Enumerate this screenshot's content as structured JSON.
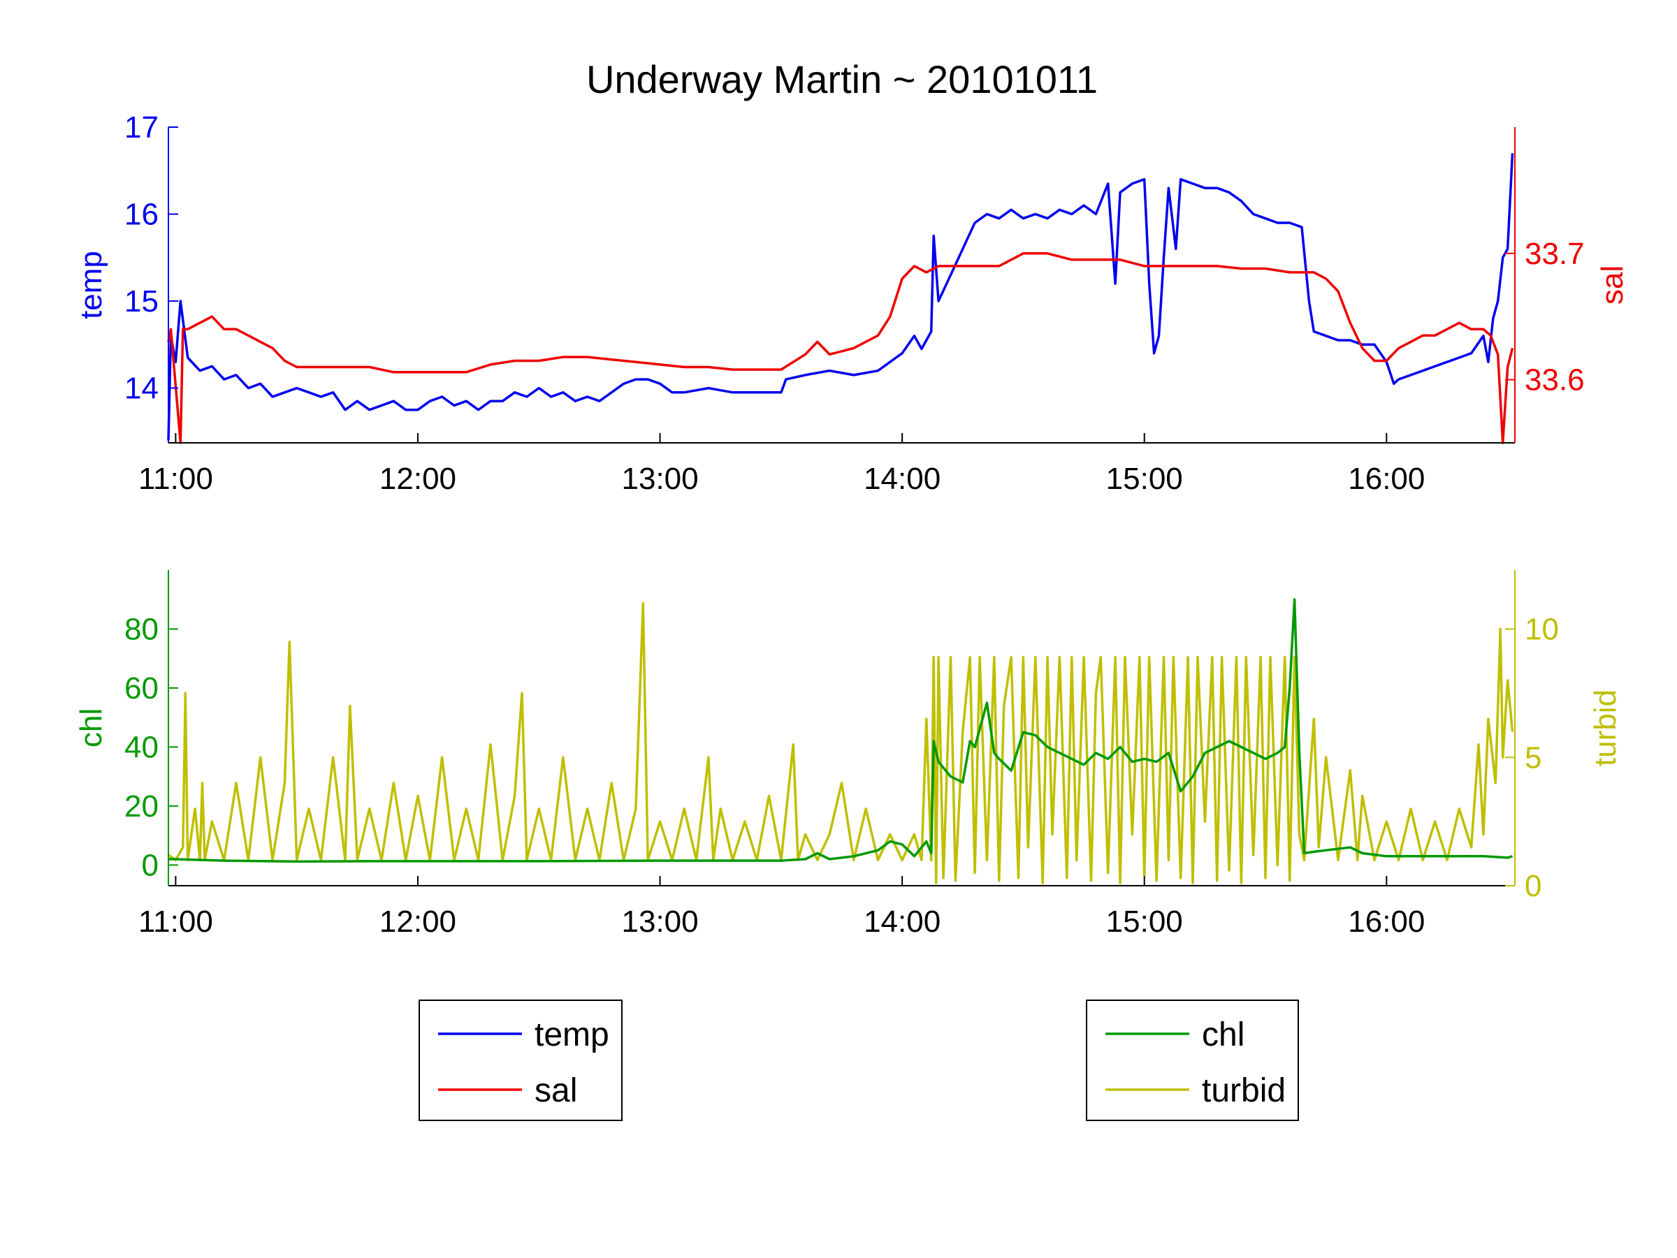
{
  "title": "Underway Martin ~ 20101011",
  "colors": {
    "temp": "#0000ee",
    "sal": "#ee0000",
    "chl": "#009900",
    "turbid": "#bfbf00",
    "axes": "#000000"
  },
  "legends": {
    "top": [
      {
        "label": "temp",
        "color": "#0000ee"
      },
      {
        "label": "sal",
        "color": "#ee0000"
      }
    ],
    "bottom": [
      {
        "label": "chl",
        "color": "#009900"
      },
      {
        "label": "turbid",
        "color": "#bfbf00"
      }
    ]
  },
  "chart_data": [
    {
      "type": "line",
      "title": "Underway Martin ~ 20101011",
      "x_ticks": [
        "11:00",
        "12:00",
        "13:00",
        "14:00",
        "15:00",
        "16:00"
      ],
      "x_range_hours": [
        10.97,
        16.53
      ],
      "y_left": {
        "label": "temp",
        "range": [
          13.37,
          17.0
        ],
        "ticks": [
          "14",
          "15",
          "16",
          "17"
        ]
      },
      "y_right": {
        "label": "sal",
        "range": [
          33.55,
          33.8
        ],
        "ticks": [
          "33.6",
          "33.7"
        ]
      },
      "legend_position": "below",
      "grid": false,
      "series": [
        {
          "name": "temp",
          "axis": "left",
          "x": [
            10.97,
            10.98,
            11.0,
            11.02,
            11.05,
            11.1,
            11.15,
            11.2,
            11.25,
            11.3,
            11.35,
            11.4,
            11.45,
            11.5,
            11.55,
            11.6,
            11.65,
            11.7,
            11.75,
            11.8,
            11.85,
            11.9,
            11.95,
            12.0,
            12.05,
            12.1,
            12.15,
            12.2,
            12.25,
            12.3,
            12.35,
            12.4,
            12.45,
            12.5,
            12.55,
            12.6,
            12.65,
            12.7,
            12.75,
            12.8,
            12.85,
            12.9,
            12.95,
            13.0,
            13.05,
            13.1,
            13.2,
            13.3,
            13.4,
            13.5,
            13.52,
            13.6,
            13.7,
            13.8,
            13.9,
            14.0,
            14.05,
            14.08,
            14.12,
            14.13,
            14.15,
            14.2,
            14.25,
            14.3,
            14.35,
            14.4,
            14.45,
            14.5,
            14.55,
            14.6,
            14.65,
            14.7,
            14.75,
            14.8,
            14.85,
            14.88,
            14.9,
            14.95,
            15.0,
            15.02,
            15.04,
            15.06,
            15.08,
            15.1,
            15.13,
            15.15,
            15.2,
            15.25,
            15.3,
            15.35,
            15.4,
            15.45,
            15.5,
            15.55,
            15.6,
            15.65,
            15.68,
            15.7,
            15.75,
            15.8,
            15.85,
            15.9,
            15.95,
            16.0,
            16.03,
            16.05,
            16.1,
            16.15,
            16.2,
            16.25,
            16.3,
            16.35,
            16.4,
            16.42,
            16.44,
            16.46,
            16.48,
            16.5,
            16.52
          ],
          "values": [
            13.4,
            14.6,
            14.3,
            15.0,
            14.35,
            14.2,
            14.25,
            14.1,
            14.15,
            14.0,
            14.05,
            13.9,
            13.95,
            14.0,
            13.95,
            13.9,
            13.95,
            13.75,
            13.85,
            13.75,
            13.8,
            13.85,
            13.75,
            13.75,
            13.85,
            13.9,
            13.8,
            13.85,
            13.75,
            13.85,
            13.85,
            13.95,
            13.9,
            14.0,
            13.9,
            13.95,
            13.85,
            13.9,
            13.85,
            13.95,
            14.05,
            14.1,
            14.1,
            14.05,
            13.95,
            13.95,
            14.0,
            13.95,
            13.95,
            13.95,
            14.1,
            14.15,
            14.2,
            14.15,
            14.2,
            14.4,
            14.6,
            14.45,
            14.65,
            15.75,
            15.0,
            15.3,
            15.6,
            15.9,
            16.0,
            15.95,
            16.05,
            15.95,
            16.0,
            15.95,
            16.05,
            16.0,
            16.1,
            16.0,
            16.35,
            15.2,
            16.25,
            16.35,
            16.4,
            15.2,
            14.4,
            14.6,
            15.5,
            16.3,
            15.6,
            16.4,
            16.35,
            16.3,
            16.3,
            16.25,
            16.15,
            16.0,
            15.95,
            15.9,
            15.9,
            15.85,
            15.0,
            14.65,
            14.6,
            14.55,
            14.55,
            14.5,
            14.5,
            14.3,
            14.05,
            14.1,
            14.15,
            14.2,
            14.25,
            14.3,
            14.35,
            14.4,
            14.6,
            14.3,
            14.8,
            15.0,
            15.5,
            15.6,
            16.7
          ]
        },
        {
          "name": "sal",
          "axis": "right",
          "x": [
            10.97,
            10.98,
            11.02,
            11.03,
            11.05,
            11.1,
            11.15,
            11.2,
            11.25,
            11.3,
            11.35,
            11.4,
            11.45,
            11.5,
            11.6,
            11.7,
            11.8,
            11.9,
            12.0,
            12.1,
            12.2,
            12.3,
            12.4,
            12.5,
            12.6,
            12.7,
            12.8,
            12.9,
            13.0,
            13.1,
            13.2,
            13.3,
            13.4,
            13.5,
            13.6,
            13.65,
            13.7,
            13.8,
            13.9,
            13.95,
            14.0,
            14.05,
            14.1,
            14.15,
            14.2,
            14.3,
            14.4,
            14.5,
            14.6,
            14.7,
            14.8,
            14.9,
            15.0,
            15.1,
            15.2,
            15.3,
            15.4,
            15.5,
            15.6,
            15.65,
            15.7,
            15.75,
            15.8,
            15.85,
            15.9,
            15.95,
            16.0,
            16.05,
            16.1,
            16.15,
            16.2,
            16.25,
            16.3,
            16.35,
            16.4,
            16.43,
            16.46,
            16.48,
            16.5,
            16.52
          ],
          "values": [
            33.63,
            33.64,
            33.55,
            33.64,
            33.64,
            33.645,
            33.65,
            33.64,
            33.64,
            33.635,
            33.63,
            33.625,
            33.615,
            33.61,
            33.61,
            33.61,
            33.61,
            33.606,
            33.606,
            33.606,
            33.606,
            33.612,
            33.615,
            33.615,
            33.618,
            33.618,
            33.616,
            33.614,
            33.612,
            33.61,
            33.61,
            33.608,
            33.608,
            33.608,
            33.62,
            33.63,
            33.62,
            33.625,
            33.635,
            33.65,
            33.68,
            33.69,
            33.685,
            33.69,
            33.69,
            33.69,
            33.69,
            33.7,
            33.7,
            33.695,
            33.695,
            33.695,
            33.69,
            33.69,
            33.69,
            33.69,
            33.688,
            33.688,
            33.685,
            33.685,
            33.685,
            33.68,
            33.67,
            33.645,
            33.625,
            33.615,
            33.615,
            33.625,
            33.63,
            33.635,
            33.635,
            33.64,
            33.645,
            33.64,
            33.64,
            33.635,
            33.62,
            33.55,
            33.61,
            33.625
          ]
        }
      ]
    },
    {
      "type": "line",
      "x_ticks": [
        "11:00",
        "12:00",
        "13:00",
        "14:00",
        "15:00",
        "16:00"
      ],
      "x_range_hours": [
        10.97,
        16.53
      ],
      "y_left": {
        "label": "chl",
        "range": [
          -7,
          100
        ],
        "ticks": [
          "0",
          "20",
          "40",
          "60",
          "80"
        ]
      },
      "y_right": {
        "label": "turbid",
        "range": [
          0,
          12.3
        ],
        "ticks": [
          "0",
          "5",
          "10"
        ]
      },
      "legend_position": "below",
      "grid": false,
      "series": [
        {
          "name": "chl",
          "axis": "left",
          "x": [
            10.97,
            11.0,
            11.2,
            11.5,
            11.8,
            12.0,
            12.5,
            13.0,
            13.5,
            13.6,
            13.65,
            13.7,
            13.8,
            13.9,
            13.95,
            14.0,
            14.05,
            14.1,
            14.12,
            14.13,
            14.15,
            14.2,
            14.25,
            14.28,
            14.3,
            14.35,
            14.38,
            14.4,
            14.45,
            14.5,
            14.55,
            14.6,
            14.65,
            14.7,
            14.75,
            14.8,
            14.85,
            14.9,
            14.95,
            15.0,
            15.05,
            15.1,
            15.15,
            15.2,
            15.25,
            15.3,
            15.35,
            15.4,
            15.45,
            15.5,
            15.55,
            15.58,
            15.6,
            15.62,
            15.64,
            15.66,
            15.7,
            15.75,
            15.8,
            15.85,
            15.9,
            16.0,
            16.1,
            16.2,
            16.3,
            16.4,
            16.5,
            16.52
          ],
          "values": [
            2,
            2,
            1.5,
            1.2,
            1.3,
            1.3,
            1.3,
            1.5,
            1.5,
            2,
            4,
            2,
            3,
            5,
            8,
            7,
            3,
            8,
            4,
            42,
            35,
            30,
            28,
            42,
            40,
            55,
            38,
            36,
            32,
            45,
            44,
            40,
            38,
            36,
            34,
            38,
            36,
            40,
            35,
            36,
            35,
            38,
            25,
            30,
            38,
            40,
            42,
            40,
            38,
            36,
            38,
            40,
            60,
            90,
            38,
            4,
            4.5,
            5,
            5.5,
            6,
            4,
            3,
            3,
            3,
            3,
            3,
            2.5,
            3
          ]
        },
        {
          "name": "turbid",
          "axis": "right",
          "x": [
            10.97,
            11.0,
            11.03,
            11.04,
            11.05,
            11.08,
            11.1,
            11.11,
            11.12,
            11.15,
            11.2,
            11.25,
            11.3,
            11.35,
            11.4,
            11.45,
            11.47,
            11.5,
            11.55,
            11.6,
            11.65,
            11.7,
            11.72,
            11.75,
            11.8,
            11.85,
            11.9,
            11.95,
            12.0,
            12.05,
            12.1,
            12.15,
            12.2,
            12.25,
            12.3,
            12.35,
            12.4,
            12.43,
            12.45,
            12.5,
            12.55,
            12.6,
            12.65,
            12.7,
            12.75,
            12.8,
            12.85,
            12.9,
            12.93,
            12.95,
            13.0,
            13.05,
            13.1,
            13.15,
            13.2,
            13.22,
            13.25,
            13.3,
            13.35,
            13.4,
            13.45,
            13.5,
            13.55,
            13.57,
            13.6,
            13.65,
            13.7,
            13.75,
            13.8,
            13.85,
            13.9,
            13.95,
            14.0,
            14.05,
            14.08,
            14.1,
            14.12,
            14.13,
            14.14,
            14.15,
            14.17,
            14.2,
            14.22,
            14.25,
            14.28,
            14.3,
            14.32,
            14.35,
            14.38,
            14.4,
            14.42,
            14.45,
            14.48,
            14.5,
            14.52,
            14.55,
            14.58,
            14.6,
            14.62,
            14.65,
            14.68,
            14.7,
            14.72,
            14.75,
            14.78,
            14.8,
            14.82,
            14.85,
            14.88,
            14.9,
            14.92,
            14.95,
            14.98,
            15.0,
            15.02,
            15.05,
            15.08,
            15.1,
            15.12,
            15.15,
            15.18,
            15.2,
            15.22,
            15.25,
            15.28,
            15.3,
            15.32,
            15.35,
            15.38,
            15.4,
            15.42,
            15.45,
            15.48,
            15.5,
            15.52,
            15.55,
            15.58,
            15.6,
            15.62,
            15.64,
            15.66,
            15.7,
            15.72,
            15.75,
            15.8,
            15.85,
            15.88,
            15.9,
            15.95,
            16.0,
            16.05,
            16.1,
            16.15,
            16.2,
            16.25,
            16.3,
            16.35,
            16.38,
            16.4,
            16.42,
            16.45,
            16.47,
            16.48,
            16.5,
            16.52
          ],
          "values": [
            1.2,
            1.0,
            1.5,
            7.5,
            1.0,
            3.0,
            1.0,
            4.0,
            1.0,
            2.5,
            1.0,
            4.0,
            1.0,
            5.0,
            1.0,
            4.0,
            9.5,
            1.0,
            3.0,
            1.0,
            5.0,
            1.0,
            7.0,
            1.0,
            3.0,
            1.0,
            4.0,
            1.0,
            3.5,
            1.0,
            5.0,
            1.0,
            3.0,
            1.0,
            5.5,
            1.0,
            3.5,
            7.5,
            1.0,
            3.0,
            1.0,
            5.0,
            1.0,
            3.0,
            1.0,
            4.0,
            1.0,
            3.0,
            11.0,
            1.0,
            2.5,
            1.0,
            3.0,
            1.0,
            5.0,
            1.0,
            3.0,
            1.0,
            2.5,
            1.0,
            3.5,
            1.0,
            5.5,
            1.0,
            2.0,
            1.0,
            2.0,
            4.0,
            1.0,
            3.0,
            1.0,
            2.0,
            1.0,
            2.0,
            1.0,
            6.5,
            1.0,
            8.9,
            0.1,
            8.9,
            0.3,
            8.9,
            0.2,
            6.0,
            8.9,
            0.5,
            8.9,
            1.0,
            8.9,
            0.2,
            7.0,
            8.9,
            0.3,
            8.9,
            1.5,
            8.9,
            0.1,
            8.9,
            2.0,
            8.9,
            0.3,
            8.9,
            1.0,
            8.9,
            0.2,
            7.5,
            8.9,
            0.5,
            8.9,
            0.1,
            8.9,
            2.0,
            8.9,
            0.4,
            8.9,
            0.2,
            8.9,
            1.0,
            8.9,
            0.3,
            8.9,
            0.1,
            8.9,
            2.5,
            8.9,
            0.2,
            8.9,
            0.6,
            8.9,
            0.1,
            8.9,
            1.2,
            8.9,
            0.3,
            8.9,
            0.8,
            8.9,
            0.2,
            8.9,
            2.0,
            1.0,
            6.5,
            1.5,
            5.0,
            1.0,
            4.5,
            1.0,
            3.5,
            1.0,
            2.5,
            1.0,
            3.0,
            1.0,
            2.5,
            1.0,
            3.0,
            1.5,
            5.5,
            2.0,
            6.5,
            4.0,
            10.0,
            5.0,
            8.0,
            6.0
          ]
        }
      ]
    }
  ]
}
